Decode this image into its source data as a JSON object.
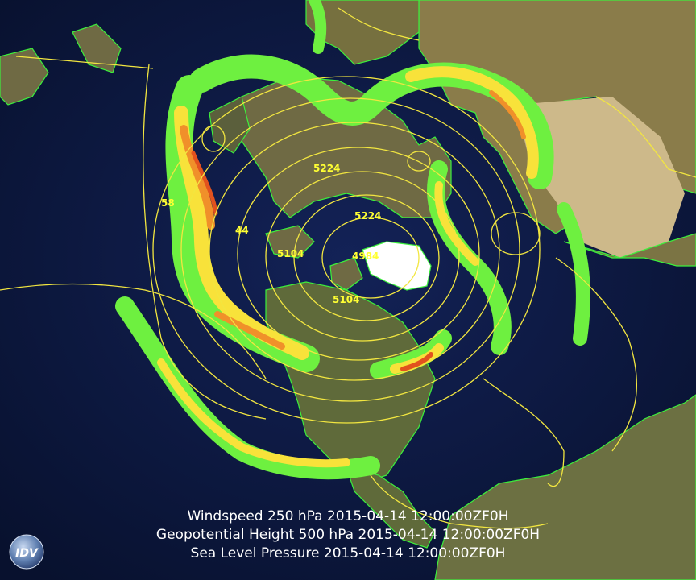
{
  "legend": [
    "Windspeed 250 hPa 2015-04-14 12:00:00ZF0H",
    "Geopotential Height 500 hPa 2015-04-14 12:00:00ZF0H",
    "Sea Level Pressure 2015-04-14 12:00:00ZF0H"
  ],
  "contour_labels": [
    "5224",
    "5224",
    "5104",
    "5104",
    "4984",
    "58",
    "44"
  ],
  "logo_text": "IDV",
  "colors": {
    "ocean": "#0b1436",
    "land": "#7e7348",
    "ice": "#ffffff",
    "coastline": "#3cf03c",
    "contour": "#f2e640",
    "wind_low": "#6ef040",
    "wind_mid": "#f8e23a",
    "wind_high": "#f0902a",
    "wind_max": "#e2521e"
  }
}
